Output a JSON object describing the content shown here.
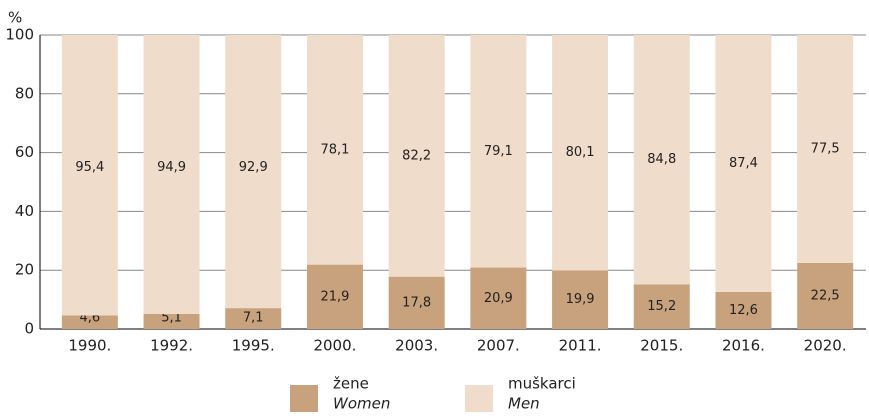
{
  "chart_data": {
    "type": "stacked_bar",
    "y_label": "%",
    "categories": [
      "1990.",
      "1992.",
      "1995.",
      "2000.",
      "2003.",
      "2007.",
      "2011.",
      "2015.",
      "2016.",
      "2020."
    ],
    "series": [
      {
        "name": "žene",
        "name_en": "Women",
        "color": "#c8a27c",
        "values": [
          4.6,
          5.1,
          7.1,
          21.9,
          17.8,
          20.9,
          19.9,
          15.2,
          12.6,
          22.5
        ],
        "value_labels": [
          "4,6",
          "5,1",
          "7,1",
          "21,9",
          "17,8",
          "20,9",
          "19,9",
          "15,2",
          "12,6",
          "22,5"
        ]
      },
      {
        "name": "muškarci",
        "name_en": "Men",
        "color": "#f0dccb",
        "values": [
          95.4,
          94.9,
          92.9,
          78.1,
          82.2,
          79.1,
          80.1,
          84.8,
          87.4,
          77.5
        ],
        "value_labels": [
          "95,4",
          "94,9",
          "92,9",
          "78,1",
          "82,2",
          "79,1",
          "80,1",
          "84,8",
          "87,4",
          "77,5"
        ]
      }
    ],
    "ylim": [
      0,
      100
    ],
    "yticks": [
      0,
      20,
      40,
      60,
      80,
      100
    ],
    "grid": true
  }
}
